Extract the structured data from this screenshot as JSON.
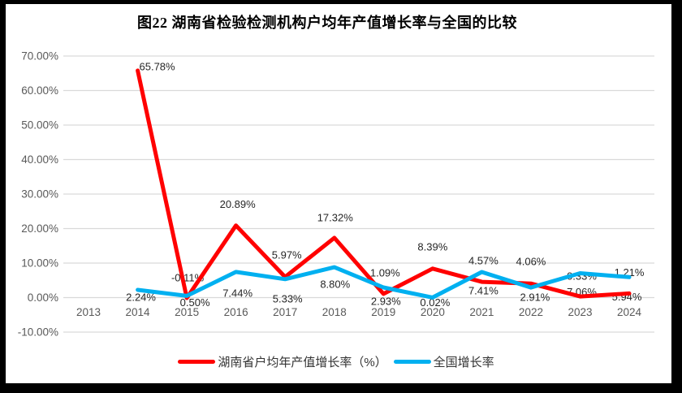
{
  "title": "图22 湖南省检验检测机构户均年产值增长率与全国的比较",
  "chart_data": {
    "type": "line",
    "categories": [
      "2013",
      "2014",
      "2015",
      "2016",
      "2017",
      "2018",
      "2019",
      "2020",
      "2021",
      "2022",
      "2023",
      "2024"
    ],
    "series": [
      {
        "name": "湖南省户均年产值增长率（%）",
        "color": "#FF0000",
        "values": [
          null,
          65.78,
          -0.11,
          20.89,
          5.97,
          17.32,
          1.09,
          8.39,
          4.57,
          4.06,
          0.33,
          1.21
        ],
        "labels": [
          "",
          "65.78%",
          "-0.11%",
          "20.89%",
          "5.97%",
          "17.32%",
          "1.09%",
          "8.39%",
          "4.57%",
          "4.06%",
          "0.33%",
          "1.21%"
        ]
      },
      {
        "name": "全国增长率",
        "color": "#00B0F0",
        "values": [
          null,
          2.24,
          0.5,
          7.44,
          5.33,
          8.8,
          2.93,
          0.02,
          7.41,
          2.91,
          7.06,
          5.94
        ],
        "labels": [
          "",
          "2.24%",
          "0.50%",
          "7.44%",
          "5.33%",
          "8.80%",
          "2.93%",
          "0.02%",
          "7.41%",
          "2.91%",
          "7.06%",
          "5.94%"
        ]
      }
    ],
    "y_axis": {
      "min": -10,
      "max": 70,
      "step": 10,
      "tick_labels": [
        "70.00%",
        "60.00%",
        "50.00%",
        "40.00%",
        "30.00%",
        "20.00%",
        "10.00%",
        "0.00%",
        "-10.00%"
      ]
    },
    "x_axis": {
      "tick_labels": [
        "2013",
        "2014",
        "2015",
        "2016",
        "2017",
        "2018",
        "2019",
        "2020",
        "2021",
        "2022",
        "2023",
        "2024"
      ]
    },
    "grid": true,
    "legend_position": "bottom"
  },
  "colors": {
    "grid_line": "#D9D9D9",
    "tick_text": "#595959",
    "data_label_text": "#262626",
    "frame": "#000000",
    "background": "#FFFFFF",
    "series_hunan": "#FF0000",
    "series_national": "#00B0F0"
  }
}
